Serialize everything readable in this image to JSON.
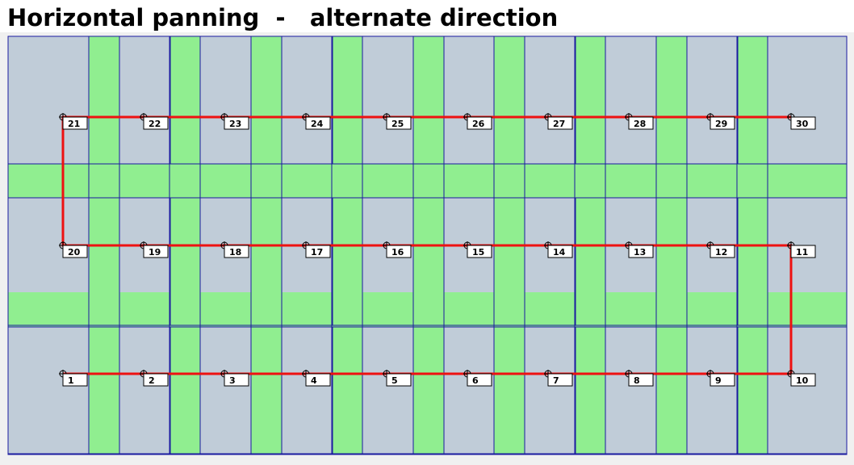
{
  "title": "Horizontal panning  -   alternate direction",
  "colors": {
    "page_bg": "#f0f0f0",
    "tile_fill": "#c0ccd8",
    "tile_stroke": "#1a1aa0",
    "overlap_fill": "#90ee90",
    "path_color": "#ee1111",
    "marker_stroke": "#000000",
    "label_box_fill": "#ffffff"
  },
  "grid": {
    "columns": 10,
    "rows": 3,
    "order": "serpentine-horizontal"
  },
  "path": {
    "icon": "crosshair-marker-icon"
  },
  "tiles": [
    {
      "label": "1"
    },
    {
      "label": "2"
    },
    {
      "label": "3"
    },
    {
      "label": "4"
    },
    {
      "label": "5"
    },
    {
      "label": "6"
    },
    {
      "label": "7"
    },
    {
      "label": "8"
    },
    {
      "label": "9"
    },
    {
      "label": "10"
    },
    {
      "label": "11"
    },
    {
      "label": "12"
    },
    {
      "label": "13"
    },
    {
      "label": "14"
    },
    {
      "label": "15"
    },
    {
      "label": "16"
    },
    {
      "label": "17"
    },
    {
      "label": "18"
    },
    {
      "label": "19"
    },
    {
      "label": "20"
    },
    {
      "label": "21"
    },
    {
      "label": "22"
    },
    {
      "label": "23"
    },
    {
      "label": "24"
    },
    {
      "label": "25"
    },
    {
      "label": "26"
    },
    {
      "label": "27"
    },
    {
      "label": "28"
    },
    {
      "label": "29"
    },
    {
      "label": "30"
    }
  ]
}
